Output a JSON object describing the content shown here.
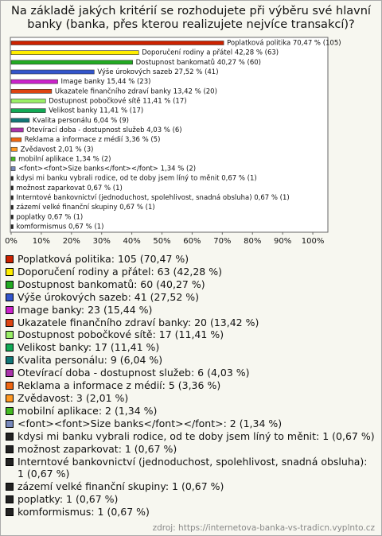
{
  "chart_data": {
    "type": "bar",
    "orientation": "horizontal",
    "title": "Na základě jakých kritérií se rozhodujete při výběru své hlavní banky (banka, přes kterou realizujete nejvíce transakcí)?",
    "values": [
      70.47,
      42.28,
      40.27,
      27.52,
      15.44,
      13.42,
      11.41,
      11.41,
      6.04,
      4.03,
      3.36,
      2.01,
      1.34,
      1.34,
      0.67,
      0.67,
      0.67,
      0.67,
      0.67,
      0.67
    ],
    "value_labels": [
      "Poplatková politika 70,47 % (105)",
      "Doporučení rodiny a přátel 42,28 % (63)",
      "Dostupnost bankomatů 40,27 % (60)",
      "Výše úrokových sazeb 27,52 % (41)",
      "Image banky 15,44 % (23)",
      "Ukazatele finančního zdraví banky 13,42 % (20)",
      "Dostupnost pobočkové sítě 11,41 % (17)",
      "Velikost banky 11,41 % (17)",
      "Kvalita personálu 6,04 % (9)",
      "Otevírací doba - dostupnost služeb 4,03 % (6)",
      "Reklama a informace z médií 3,36 % (5)",
      "Zvědavost 2,01 % (3)",
      "mobilní aplikace 1,34 % (2)",
      "<font><font>Size banks</font></font> 1,34 % (2)",
      "kdysi mi banku vybrali rodice, od te doby jsem líný to měnit 0,67 % (1)",
      "možnost zaparkovat 0,67 % (1)",
      "Interntové bankovnictví (jednoduchost, spolehlivost, snadná obsluha) 0,67 % (1)",
      "zázemí velké finanční skupiny 0,67 % (1)",
      "poplatky 0,67 % (1)",
      "komformismus 0,67 % (1)"
    ],
    "legend_labels": [
      "Poplatková politika: 105 (70,47 %)",
      "Doporučení rodiny a přátel: 63 (42,28 %)",
      "Dostupnost bankomatů: 60 (40,27 %)",
      "Výše úrokových sazeb: 41 (27,52 %)",
      "Image banky: 23 (15,44 %)",
      "Ukazatele finančního zdraví banky: 20 (13,42 %)",
      "Dostupnost pobočkové sítě: 17 (11,41 %)",
      "Velikost banky: 17 (11,41 %)",
      "Kvalita personálu: 9 (6,04 %)",
      "Otevírací doba - dostupnost služeb: 6 (4,03 %)",
      "Reklama a informace z médií: 5 (3,36 %)",
      "Zvědavost: 3 (2,01 %)",
      "mobilní aplikace: 2 (1,34 %)",
      "<font><font>Size banks</font></font>: 2 (1,34 %)",
      "kdysi mi banku vybrali rodice, od te doby jsem líný to měnit: 1 (0,67 %)",
      "možnost zaparkovat: 1 (0,67 %)",
      "Interntové bankovnictví (jednoduchost, spolehlivost, snadná obsluha): 1 (0,67 %)",
      "zázemí velké finanční skupiny: 1 (0,67 %)",
      "poplatky: 1 (0,67 %)",
      "komformismus: 1 (0,67 %)"
    ],
    "colors": [
      "#cc2200",
      "#ffee00",
      "#22aa22",
      "#3355cc",
      "#cc22cc",
      "#dd4411",
      "#99ee66",
      "#11aa55",
      "#117777",
      "#aa33aa",
      "#ee6611",
      "#ff9922",
      "#44bb22",
      "#7788bb",
      "#222222",
      "#222222",
      "#222222",
      "#222222",
      "#222222",
      "#222222"
    ],
    "xlim": [
      0,
      105
    ],
    "xticks": [
      {
        "value": 0,
        "label": "0%"
      },
      {
        "value": 10,
        "label": "10%"
      },
      {
        "value": 20,
        "label": "20%"
      },
      {
        "value": 30,
        "label": "30%"
      },
      {
        "value": 40,
        "label": "40%"
      },
      {
        "value": 50,
        "label": "50%"
      },
      {
        "value": 60,
        "label": "60%"
      },
      {
        "value": 70,
        "label": "70%"
      },
      {
        "value": 80,
        "label": "80%"
      },
      {
        "value": 90,
        "label": "90%"
      },
      {
        "value": 100,
        "label": "100%"
      }
    ],
    "source": "zdroj: https://internetova-banka-vs-tradicn.vyplnto.cz"
  }
}
